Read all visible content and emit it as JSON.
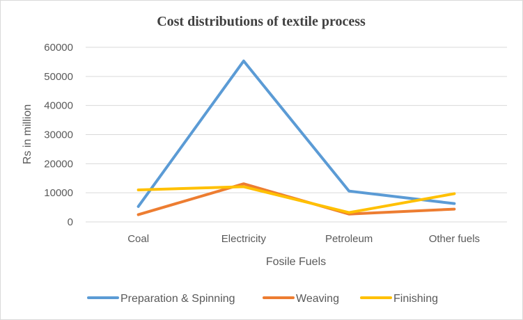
{
  "chart_data": {
    "type": "line",
    "title": "Cost distributions of textile process",
    "xlabel": "Fosile Fuels",
    "ylabel": "Rs in million",
    "categories": [
      "Coal",
      "Electricity",
      "Petroleum",
      "Other fuels"
    ],
    "ylim": [
      0,
      60000
    ],
    "yticks": [
      "0",
      "10000",
      "20000",
      "30000",
      "40000",
      "50000",
      "60000"
    ],
    "grid": true,
    "legend_position": "bottom",
    "series": [
      {
        "name": "Preparation & Spinning",
        "color": "#5b9bd5",
        "values": [
          5300,
          55300,
          10600,
          6300
        ]
      },
      {
        "name": "Weaving",
        "color": "#ed7d31",
        "values": [
          2500,
          13100,
          2700,
          4400
        ]
      },
      {
        "name": "Finishing",
        "color": "#ffc000",
        "values": [
          11000,
          12100,
          3200,
          9700
        ]
      }
    ]
  }
}
